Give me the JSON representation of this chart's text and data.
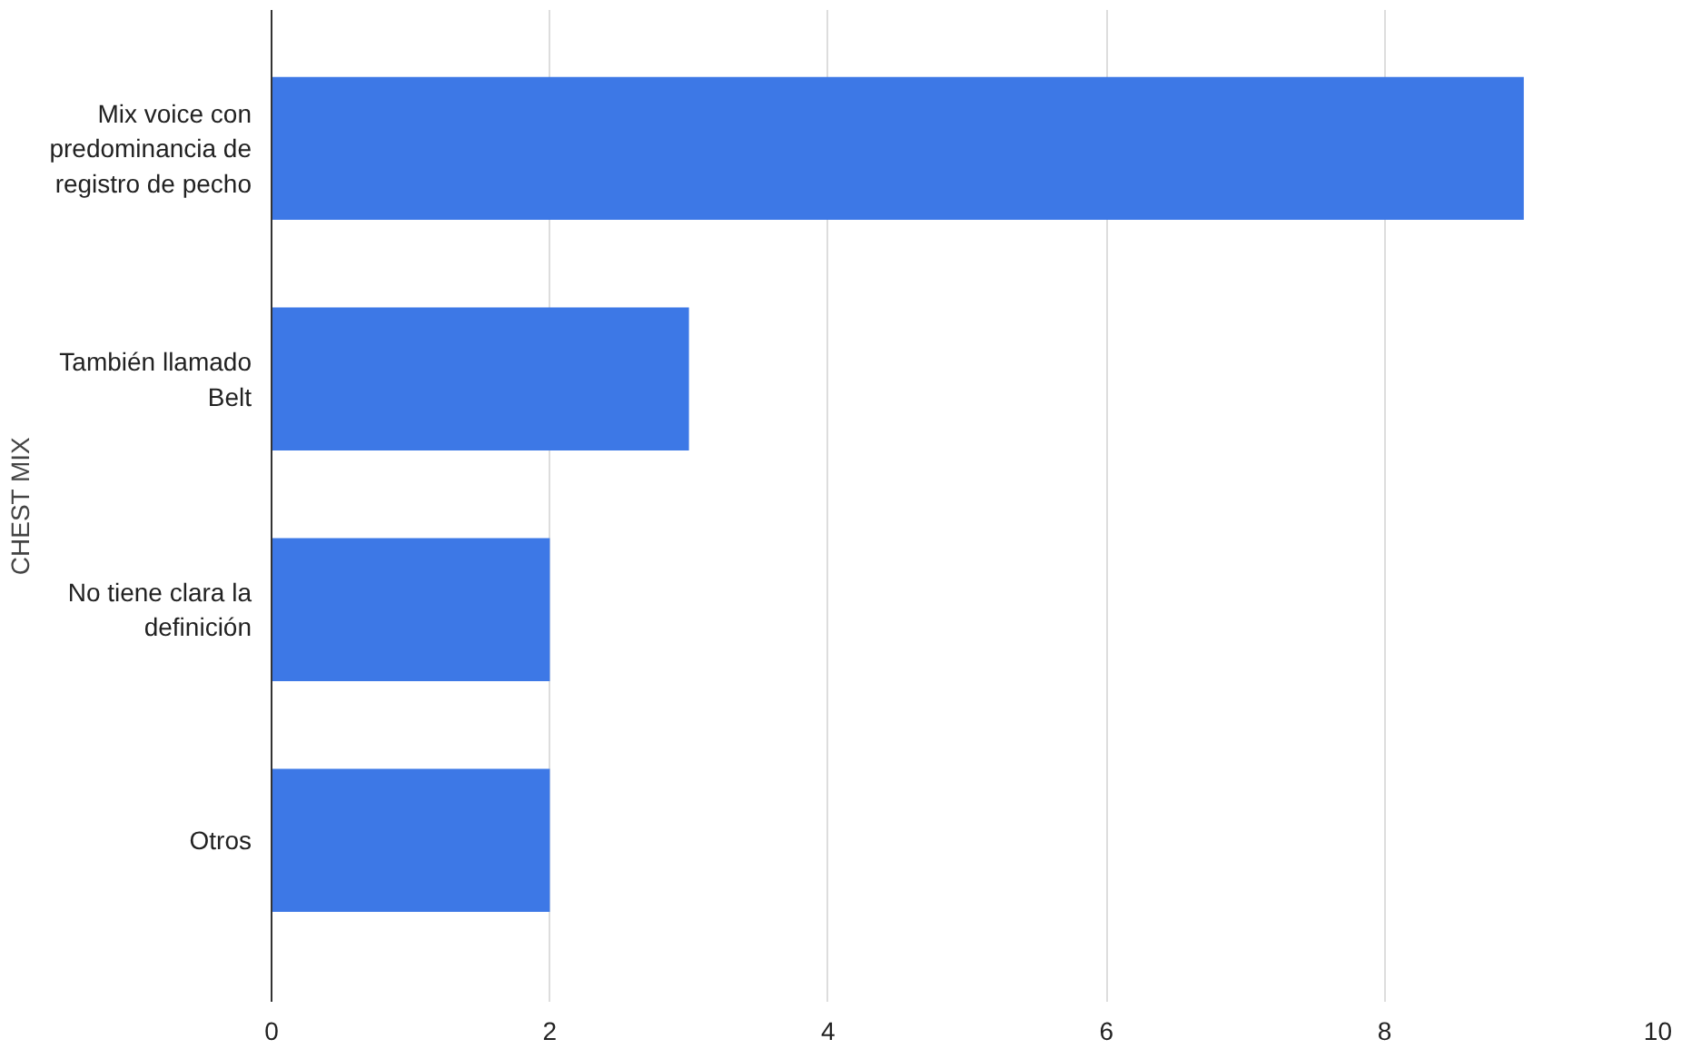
{
  "chart_data": {
    "type": "bar",
    "orientation": "horizontal",
    "ylabel": "CHEST MIX",
    "categories": [
      "Mix voice con predominancia de registro de pecho",
      "También llamado Belt",
      "No tiene clara la definición",
      "Otros"
    ],
    "values": [
      9,
      3,
      2,
      2
    ],
    "color": "#3d78e6",
    "xlim": [
      0,
      10
    ],
    "xticks": [
      0,
      2,
      4,
      6,
      8,
      10
    ],
    "grid": "x"
  }
}
